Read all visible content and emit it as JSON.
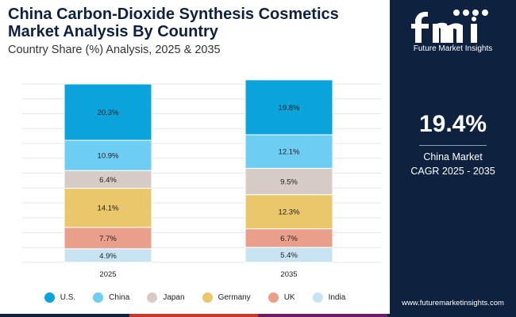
{
  "title": "China Carbon-Dioxide Synthesis Cosmetics Market Analysis By Country",
  "subtitle": "Country Share (%) Analysis, 2025 & 2035",
  "side_panel": {
    "logo_text": "fmi",
    "logo_caption": "Future Market Insights",
    "cagr_value": "19.4%",
    "cagr_label_line1": "China Market",
    "cagr_label_line2": "CAGR 2025 - 2035",
    "website": "www.futuremarketinsights.com",
    "background_color": "#0e2240"
  },
  "bottom_bar_colors": [
    "#0e2240",
    "#c0392b",
    "#6a1b6a",
    "#0e2240"
  ],
  "chart_data": {
    "type": "bar",
    "stacked": true,
    "categories": [
      "2025",
      "2035"
    ],
    "series": [
      {
        "name": "India",
        "values": [
          4.9,
          5.4
        ],
        "labels": [
          "4.9%",
          "5.4%"
        ],
        "color": "#c8e3f2"
      },
      {
        "name": "UK",
        "values": [
          7.7,
          6.7
        ],
        "labels": [
          "7.7%",
          "6.7%"
        ],
        "color": "#ea9f8b"
      },
      {
        "name": "Germany",
        "values": [
          14.1,
          12.3
        ],
        "labels": [
          "14.1%",
          "12.3%"
        ],
        "color": "#ebc76b"
      },
      {
        "name": "Japan",
        "values": [
          6.4,
          9.5
        ],
        "labels": [
          "6.4%",
          "9.5%"
        ],
        "color": "#d7cbc6"
      },
      {
        "name": "China",
        "values": [
          10.9,
          12.1
        ],
        "labels": [
          "10.9%",
          "12.1%"
        ],
        "color": "#6dcdf2"
      },
      {
        "name": "U.S.",
        "values": [
          20.3,
          19.8
        ],
        "labels": [
          "20.3%",
          "19.8%"
        ],
        "color": "#0aa3dc"
      }
    ],
    "legend_order": [
      "U.S.",
      "China",
      "Japan",
      "Germany",
      "UK",
      "India"
    ],
    "legend_position": "bottom",
    "grid": true,
    "ylim": [
      0,
      64.3
    ]
  }
}
